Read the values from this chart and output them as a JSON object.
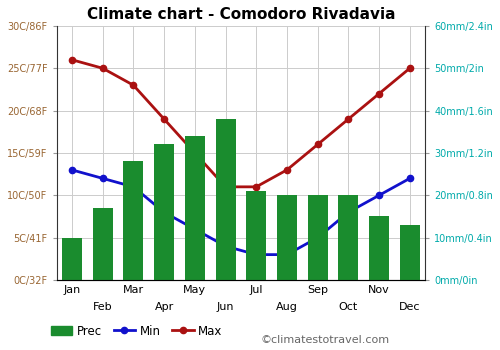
{
  "title": "Climate chart - Comodoro Rivadavia",
  "months": [
    "Jan",
    "Feb",
    "Mar",
    "Apr",
    "May",
    "Jun",
    "Jul",
    "Aug",
    "Sep",
    "Oct",
    "Nov",
    "Dec"
  ],
  "prec_mm": [
    10,
    17,
    28,
    32,
    34,
    38,
    21,
    20,
    20,
    20,
    15,
    13
  ],
  "temp_max": [
    26,
    25,
    23,
    19,
    15,
    11,
    11,
    13,
    16,
    19,
    22,
    25
  ],
  "temp_min": [
    13,
    12,
    11,
    8,
    6,
    4,
    3,
    3,
    5,
    8,
    10,
    12
  ],
  "temp_ylim": [
    0,
    30
  ],
  "prec_ylim": [
    0,
    60
  ],
  "left_yticks": [
    0,
    5,
    10,
    15,
    20,
    25,
    30
  ],
  "left_ylabels": [
    "0C/32F",
    "5C/41F",
    "10C/50F",
    "15C/59F",
    "20C/68F",
    "25C/77F",
    "30C/86F"
  ],
  "right_yticks": [
    0,
    10,
    20,
    30,
    40,
    50,
    60
  ],
  "right_ylabels": [
    "0mm/0in",
    "10mm/0.4in",
    "20mm/0.8in",
    "30mm/1.2in",
    "40mm/1.6in",
    "50mm/2in",
    "60mm/2.4in"
  ],
  "bar_color": "#1a8c2e",
  "line_min_color": "#1111cc",
  "line_max_color": "#aa1111",
  "bg_color": "#ffffff",
  "grid_color": "#cccccc",
  "left_tick_color": "#996633",
  "right_tick_color": "#00aaaa",
  "title_color": "#000000",
  "watermark": "©climatestotravel.com",
  "watermark_color": "#666666",
  "figsize": [
    5.0,
    3.5
  ],
  "dpi": 100
}
